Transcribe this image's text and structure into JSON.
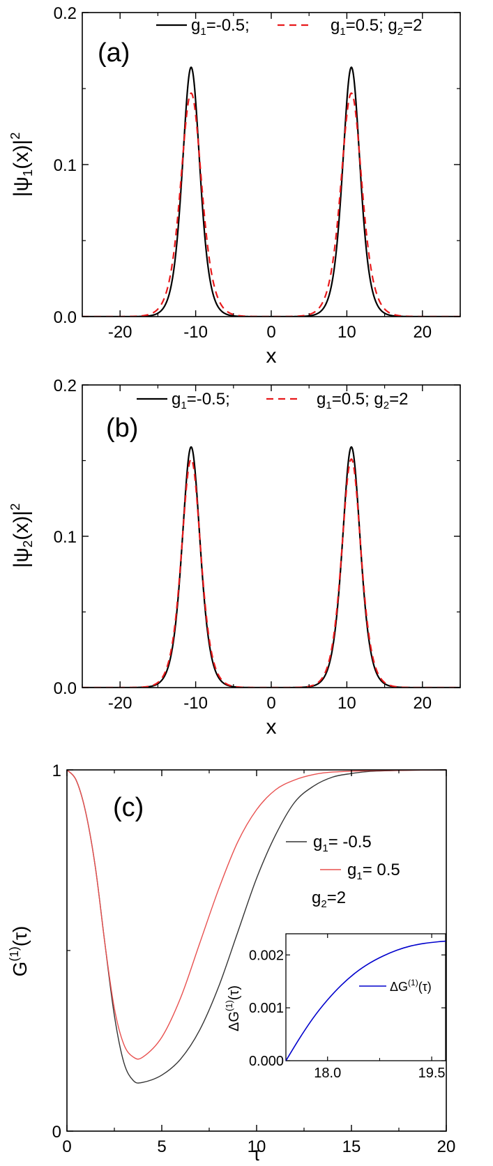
{
  "chart_data": [
    {
      "type": "line",
      "panel_label": "(a)",
      "xlabel": "x",
      "ylabel": "|ψ1(x)|²",
      "ylabel_parts": {
        "base": "|ψ",
        "sub": "1",
        "mid": "(x)|",
        "sup": "2"
      },
      "xlim": [
        -25,
        25
      ],
      "ylim": [
        0,
        0.2
      ],
      "xticks": [
        -20,
        -10,
        0,
        10,
        20
      ],
      "xtick_labels": [
        "-20",
        "-10",
        "0",
        "10",
        "20"
      ],
      "yticks": [
        0,
        0.1,
        0.2
      ],
      "ytick_labels": [
        "0.0",
        "0.1",
        "0.2"
      ],
      "legend": {
        "placement": "top",
        "entries": [
          {
            "text": "g1=-0.5;",
            "base": "g",
            "sub": "1",
            "rest": "=-0.5;"
          },
          {
            "text": "g1=0.5; g2=2",
            "base": "g",
            "sub": "1",
            "rest": "=0.5; g",
            "sub2": "2",
            "rest2": "=2"
          }
        ]
      },
      "series": [
        {
          "name": "g1=-0.5",
          "style": "solid",
          "color": "#000000",
          "peaks": [
            -10.6,
            10.6
          ],
          "peak_height": 0.164,
          "width": 1.55
        },
        {
          "name": "g1=0.5; g2=2",
          "style": "dashed",
          "color": "#e8191b",
          "peaks": [
            -10.6,
            10.6
          ],
          "peak_height": 0.147,
          "width": 1.85
        }
      ]
    },
    {
      "type": "line",
      "panel_label": "(b)",
      "xlabel": "x",
      "ylabel": "|ψ2(x)|²",
      "ylabel_parts": {
        "base": "|ψ",
        "sub": "2",
        "mid": "(x)|",
        "sup": "2"
      },
      "xlim": [
        -25,
        25
      ],
      "ylim": [
        0,
        0.2
      ],
      "xticks": [
        -20,
        -10,
        0,
        10,
        20
      ],
      "xtick_labels": [
        "-20",
        "-10",
        "0",
        "10",
        "20"
      ],
      "yticks": [
        0,
        0.1,
        0.2
      ],
      "ytick_labels": [
        "0.0",
        "0.1",
        "0.2"
      ],
      "legend": {
        "placement": "top",
        "entries": [
          {
            "text": "g1=-0.5;",
            "base": "g",
            "sub": "1",
            "rest": "=-0.5;"
          },
          {
            "text": "g1=0.5;  g2=2",
            "base": "g",
            "sub": "1",
            "rest": "=0.5;  g",
            "sub2": "2",
            "rest2": "=2"
          }
        ]
      },
      "series": [
        {
          "name": "g1=-0.5",
          "style": "solid",
          "color": "#000000",
          "peaks": [
            -10.6,
            10.6
          ],
          "peak_height": 0.159,
          "width": 1.6
        },
        {
          "name": "g1=0.5; g2=2",
          "style": "dashed",
          "color": "#e8191b",
          "peaks": [
            -10.6,
            10.6
          ],
          "peak_height": 0.151,
          "width": 1.7
        }
      ]
    },
    {
      "type": "line",
      "panel_label": "(c)",
      "xlabel": "τ",
      "ylabel": "G(1)(τ)",
      "ylabel_parts": {
        "base": "G",
        "sup": "(1)",
        "rest": "(τ)"
      },
      "xlim": [
        0,
        20
      ],
      "ylim": [
        0,
        1
      ],
      "xticks": [
        0,
        5,
        10,
        15,
        20
      ],
      "xtick_labels": [
        "0",
        "5",
        "10",
        "15",
        "20"
      ],
      "yticks": [
        0,
        1
      ],
      "ytick_labels": [
        "0",
        "1"
      ],
      "legend": {
        "placement": "right",
        "entries": [
          {
            "text": "g1= -0.5",
            "base": "g",
            "sub": "1",
            "rest": "= -0.5"
          },
          {
            "text": "g1= 0.5",
            "base": "g",
            "sub": "1",
            "rest": "= 0.5"
          }
        ],
        "note": {
          "text": "g2=2",
          "base": "g",
          "sub": "2",
          "rest": "=2"
        }
      },
      "series": [
        {
          "name": "g1= -0.5",
          "color": "#333333",
          "points": [
            [
              0,
              1.0
            ],
            [
              0.5,
              0.97
            ],
            [
              1.0,
              0.88
            ],
            [
              1.5,
              0.73
            ],
            [
              2.0,
              0.52
            ],
            [
              2.5,
              0.32
            ],
            [
              3.0,
              0.19
            ],
            [
              3.5,
              0.14
            ],
            [
              4.0,
              0.135
            ],
            [
              5.0,
              0.155
            ],
            [
              6.0,
              0.2
            ],
            [
              7.0,
              0.28
            ],
            [
              8.0,
              0.4
            ],
            [
              9.0,
              0.55
            ],
            [
              10.0,
              0.7
            ],
            [
              11.0,
              0.82
            ],
            [
              12.0,
              0.91
            ],
            [
              13.0,
              0.955
            ],
            [
              14.0,
              0.98
            ],
            [
              15.0,
              0.99
            ],
            [
              16.0,
              0.996
            ],
            [
              18.0,
              0.999
            ],
            [
              20.0,
              1.0
            ]
          ]
        },
        {
          "name": "g1= 0.5",
          "color": "#e8504f",
          "points": [
            [
              0,
              1.0
            ],
            [
              0.5,
              0.97
            ],
            [
              1.0,
              0.88
            ],
            [
              1.5,
              0.73
            ],
            [
              2.0,
              0.52
            ],
            [
              2.5,
              0.34
            ],
            [
              3.0,
              0.24
            ],
            [
              3.5,
              0.205
            ],
            [
              4.0,
              0.205
            ],
            [
              5.0,
              0.26
            ],
            [
              6.0,
              0.37
            ],
            [
              7.0,
              0.52
            ],
            [
              8.0,
              0.67
            ],
            [
              9.0,
              0.8
            ],
            [
              10.0,
              0.89
            ],
            [
              11.0,
              0.945
            ],
            [
              12.0,
              0.972
            ],
            [
              13.0,
              0.987
            ],
            [
              14.0,
              0.994
            ],
            [
              16.0,
              0.998
            ],
            [
              18.0,
              0.999
            ],
            [
              20.0,
              1.0
            ]
          ]
        }
      ],
      "inset": {
        "type": "line",
        "ylabel": "ΔG(1)(τ)",
        "ylabel_parts": {
          "base": "ΔG",
          "sup": "(1)",
          "rest": "(τ)"
        },
        "xlim": [
          17.4,
          19.7
        ],
        "ylim": [
          0,
          0.0024
        ],
        "xticks": [
          18.0,
          19.5
        ],
        "xtick_labels": [
          "18.0",
          "19.5"
        ],
        "yticks": [
          0,
          0.001,
          0.002
        ],
        "ytick_labels": [
          "0.000",
          "0.001",
          "0.002"
        ],
        "legend": {
          "entries": [
            {
              "text": "ΔG(1)(τ)",
              "base": "ΔG",
              "sup": "(1)",
              "rest": "(τ)"
            }
          ]
        },
        "series": [
          {
            "name": "ΔG(1)(τ)",
            "color": "#0000cc",
            "points": [
              [
                17.4,
                0.0
              ],
              [
                17.6,
                0.00043
              ],
              [
                17.8,
                0.00082
              ],
              [
                18.0,
                0.00115
              ],
              [
                18.2,
                0.00143
              ],
              [
                18.4,
                0.00166
              ],
              [
                18.6,
                0.00184
              ],
              [
                18.8,
                0.00198
              ],
              [
                19.0,
                0.00209
              ],
              [
                19.2,
                0.00217
              ],
              [
                19.4,
                0.00222
              ],
              [
                19.6,
                0.00225
              ],
              [
                19.7,
                0.00226
              ]
            ]
          }
        ]
      }
    }
  ]
}
